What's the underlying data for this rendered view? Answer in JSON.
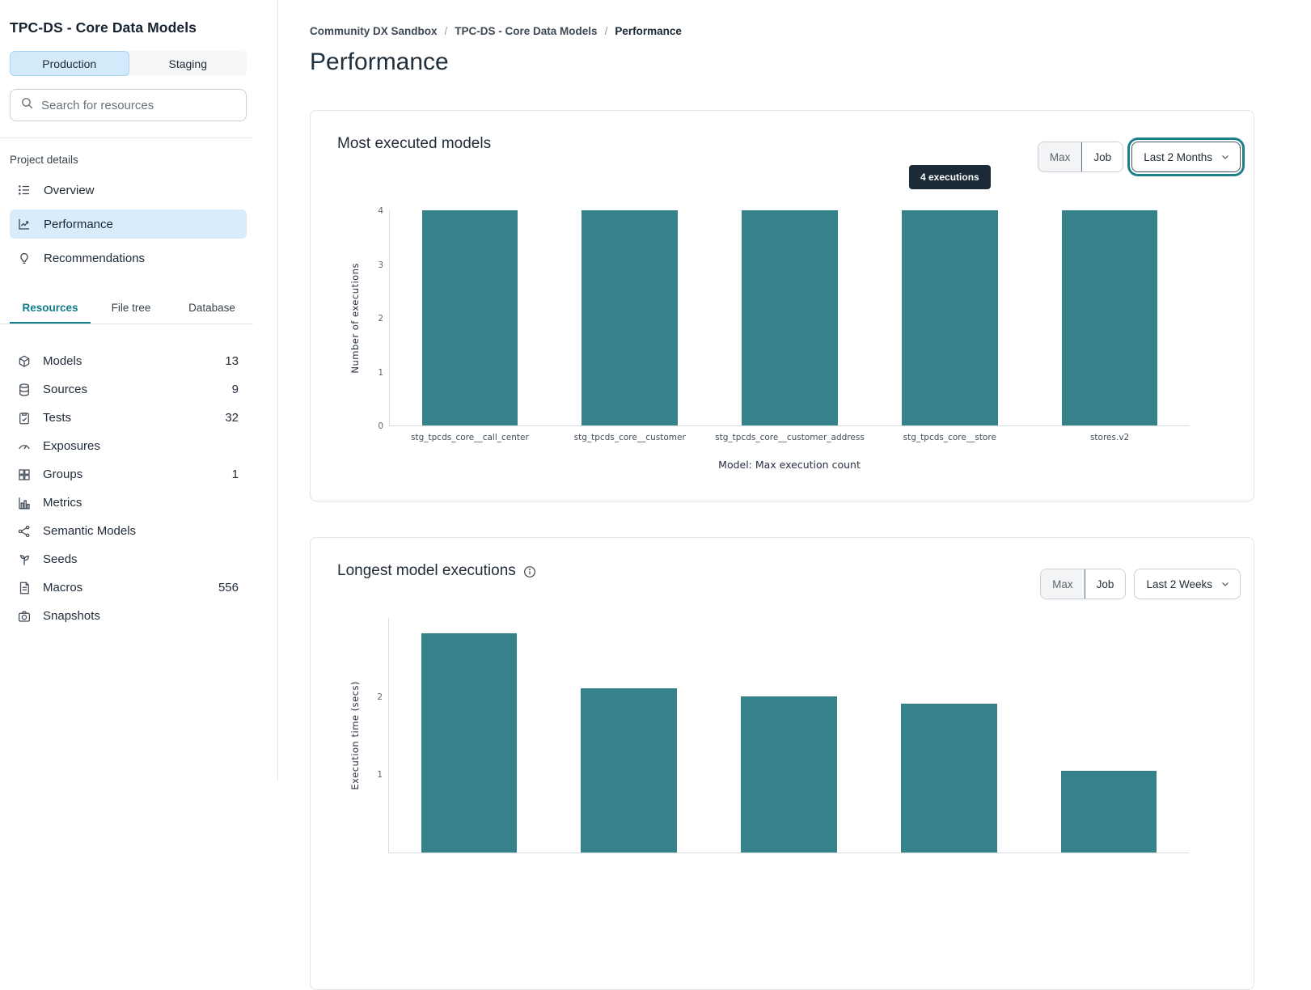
{
  "sidebar": {
    "title": "TPC-DS - Core Data Models",
    "env_toggle": {
      "options": [
        "Production",
        "Staging"
      ],
      "selected": "Production"
    },
    "search_placeholder": "Search for resources",
    "section_label": "Project details",
    "nav": [
      {
        "label": "Overview",
        "icon": "list-icon",
        "active": false
      },
      {
        "label": "Performance",
        "icon": "chart-line-icon",
        "active": true
      },
      {
        "label": "Recommendations",
        "icon": "lightbulb-icon",
        "active": false
      }
    ],
    "tabs": [
      {
        "label": "Resources",
        "active": true
      },
      {
        "label": "File tree",
        "active": false
      },
      {
        "label": "Database",
        "active": false
      }
    ],
    "resources": [
      {
        "label": "Models",
        "icon": "cube-icon",
        "count": "13"
      },
      {
        "label": "Sources",
        "icon": "database-icon",
        "count": "9"
      },
      {
        "label": "Tests",
        "icon": "clipboard-check-icon",
        "count": "32"
      },
      {
        "label": "Exposures",
        "icon": "gauge-icon",
        "count": ""
      },
      {
        "label": "Groups",
        "icon": "grid-icon",
        "count": "1"
      },
      {
        "label": "Metrics",
        "icon": "bar-chart-icon",
        "count": ""
      },
      {
        "label": "Semantic Models",
        "icon": "network-icon",
        "count": ""
      },
      {
        "label": "Seeds",
        "icon": "seedling-icon",
        "count": ""
      },
      {
        "label": "Macros",
        "icon": "document-icon",
        "count": "556"
      },
      {
        "label": "Snapshots",
        "icon": "camera-icon",
        "count": ""
      }
    ]
  },
  "breadcrumb": [
    "Community DX Sandbox",
    "TPC-DS - Core Data Models",
    "Performance"
  ],
  "page_title": "Performance",
  "colors": {
    "accent_teal": "#35828a",
    "active_blue": "#d8ecfb",
    "tooltip_bg": "#1b2a36",
    "tab_teal": "#0d7d87"
  },
  "chart_data": [
    {
      "type": "bar",
      "title": "Most executed models",
      "controls": {
        "max_label": "Max",
        "job_label": "Job",
        "range_label": "Last 2 Months",
        "range_focused": true
      },
      "tooltip": "4 executions",
      "categories": [
        "stg_tpcds_core__call_center",
        "stg_tpcds_core__customer",
        "stg_tpcds_core__customer_address",
        "stg_tpcds_core__store",
        "stores.v2"
      ],
      "values": [
        4,
        4,
        4,
        4,
        4
      ],
      "ylabel": "Number of executions",
      "xlabel": "Model: Max execution count",
      "ylim": [
        0,
        4
      ],
      "yticks": [
        0,
        1,
        2,
        3,
        4
      ],
      "bar_color": "#35828a",
      "grid": false,
      "legend": "none"
    },
    {
      "type": "bar",
      "title": "Longest model executions",
      "has_info_icon": true,
      "controls": {
        "max_label": "Max",
        "job_label": "Job",
        "range_label": "Last 2 Weeks",
        "range_focused": false
      },
      "categories": [
        "",
        "",
        "",
        "",
        ""
      ],
      "values": [
        2.8,
        2.1,
        2.0,
        1.9,
        1.05
      ],
      "ylabel": "Execution time (secs)",
      "xlabel": "",
      "ylim": [
        0,
        3
      ],
      "yticks": [
        1,
        2
      ],
      "bar_color": "#35828a",
      "grid": false,
      "legend": "none"
    }
  ]
}
